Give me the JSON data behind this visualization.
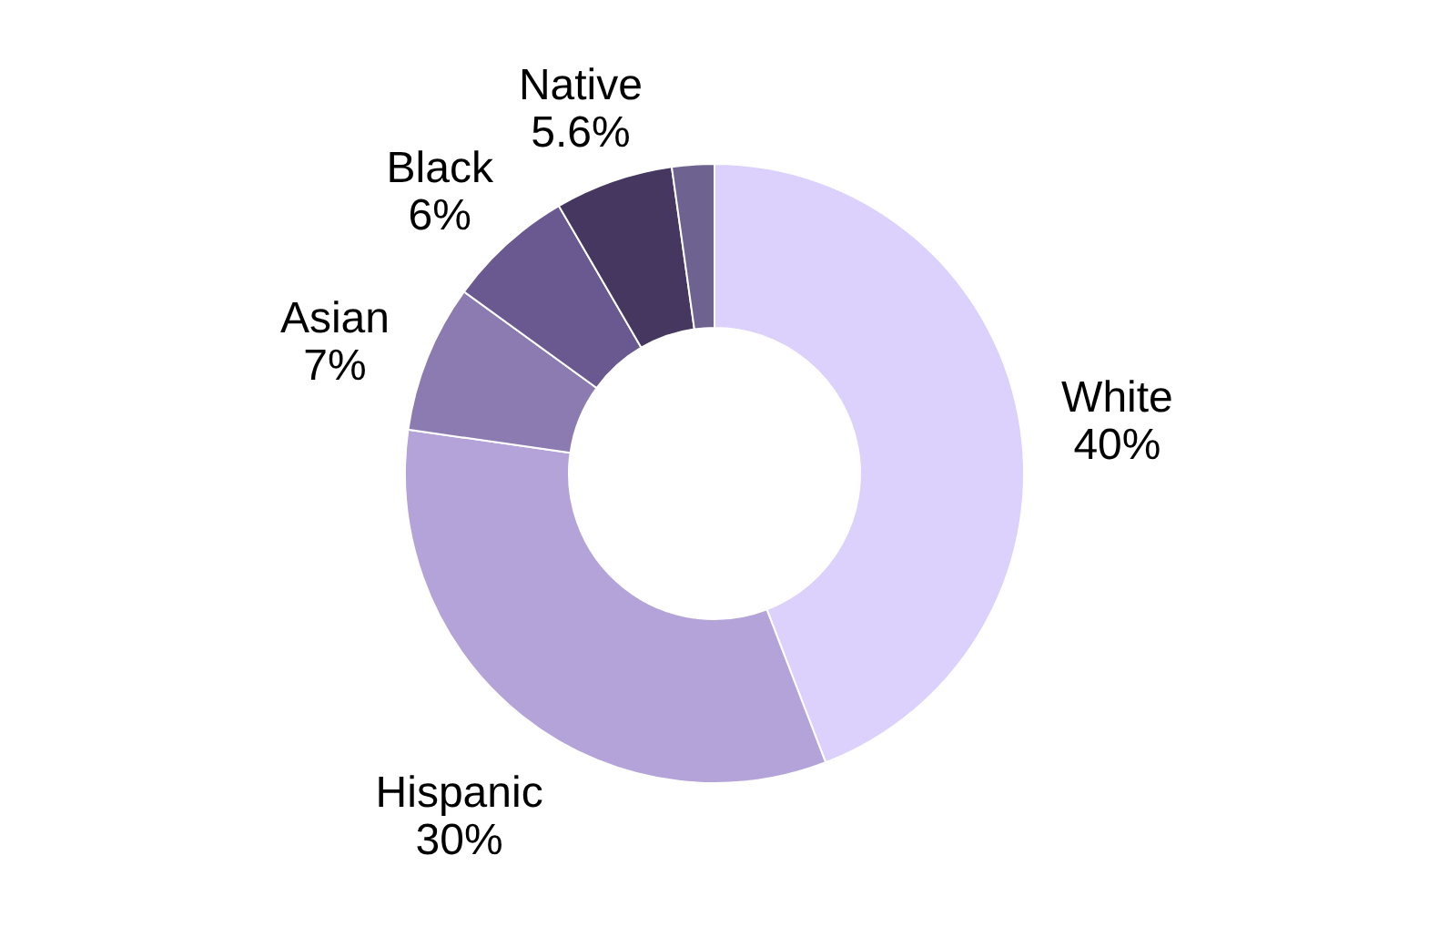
{
  "chart_data": {
    "type": "donut",
    "categories": [
      "White",
      "Hispanic",
      "Asian",
      "Black",
      "Native",
      null
    ],
    "values": [
      40,
      30,
      7,
      6,
      5.6,
      2
    ],
    "value_labels": [
      "40%",
      "30%",
      "7%",
      "6%",
      "5.6%",
      null
    ],
    "colors": [
      "#dcd0fc",
      "#b3a3d8",
      "#8b7bb0",
      "#6a5890",
      "#45375f",
      "#6e6290"
    ]
  }
}
